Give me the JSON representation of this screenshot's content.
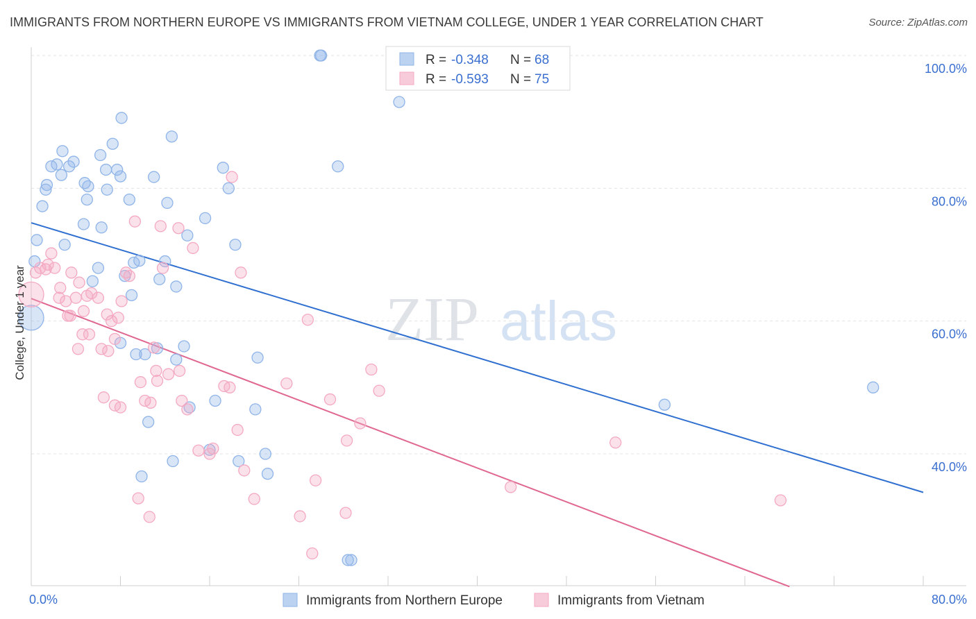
{
  "chart_data": {
    "type": "scatter",
    "title": "IMMIGRANTS FROM NORTHERN EUROPE VS IMMIGRANTS FROM VIETNAM COLLEGE, UNDER 1 YEAR CORRELATION CHART",
    "source": "Source: ZipAtlas.com",
    "ylabel": "College, Under 1 year",
    "xlabel": "",
    "xlim": [
      0,
      80
    ],
    "ylim": [
      20,
      102
    ],
    "x_tick_labels": [
      "0.0%",
      "80.0%"
    ],
    "y_ticks": [
      40,
      60,
      80,
      100
    ],
    "y_tick_labels": [
      "40.0%",
      "60.0%",
      "80.0%",
      "100.0%"
    ],
    "grid": true,
    "watermark": "ZIPatlas",
    "legend_position": "top-center",
    "series": [
      {
        "name": "Immigrants from Northern Europe",
        "color": "#8fb4e8",
        "line_color": "#2f6fd0",
        "r_label": "R =",
        "r_value": "-0.348",
        "n_label": "N =",
        "n_value": "68",
        "trend": [
          [
            0,
            74.8
          ],
          [
            80,
            34.2
          ]
        ],
        "points": [
          [
            0.0,
            60.5
          ],
          [
            0.5,
            72.2
          ],
          [
            0.3,
            69.0
          ],
          [
            1.0,
            77.3
          ],
          [
            1.4,
            80.5
          ],
          [
            1.3,
            79.8
          ],
          [
            1.8,
            83.3
          ],
          [
            2.3,
            83.6
          ],
          [
            2.8,
            85.6
          ],
          [
            3.4,
            83.3
          ],
          [
            3.8,
            84.0
          ],
          [
            2.7,
            82.0
          ],
          [
            5.1,
            80.3
          ],
          [
            4.8,
            80.8
          ],
          [
            3.0,
            71.5
          ],
          [
            4.7,
            74.6
          ],
          [
            5.0,
            78.3
          ],
          [
            6.2,
            85.0
          ],
          [
            6.7,
            82.8
          ],
          [
            6.8,
            79.8
          ],
          [
            7.3,
            86.7
          ],
          [
            7.7,
            82.8
          ],
          [
            8.0,
            81.8
          ],
          [
            8.1,
            90.6
          ],
          [
            8.8,
            78.3
          ],
          [
            11.0,
            81.7
          ],
          [
            12.2,
            77.8
          ],
          [
            12.6,
            87.8
          ],
          [
            6.3,
            74.1
          ],
          [
            5.5,
            66.0
          ],
          [
            8.4,
            66.8
          ],
          [
            9.0,
            63.9
          ],
          [
            9.7,
            69.1
          ],
          [
            11.5,
            66.3
          ],
          [
            13.0,
            65.2
          ],
          [
            14.0,
            72.9
          ],
          [
            15.6,
            75.5
          ],
          [
            17.2,
            83.1
          ],
          [
            17.7,
            80.0
          ],
          [
            18.3,
            71.5
          ],
          [
            8.0,
            56.7
          ],
          [
            9.4,
            55.0
          ],
          [
            10.2,
            55.0
          ],
          [
            11.3,
            55.9
          ],
          [
            13.0,
            54.2
          ],
          [
            13.7,
            56.2
          ],
          [
            20.3,
            54.5
          ],
          [
            10.5,
            44.8
          ],
          [
            12.7,
            38.9
          ],
          [
            14.2,
            47.0
          ],
          [
            16.0,
            40.6
          ],
          [
            16.5,
            48.0
          ],
          [
            18.6,
            38.9
          ],
          [
            20.1,
            46.7
          ],
          [
            21.0,
            40.0
          ],
          [
            21.2,
            37.0
          ],
          [
            9.9,
            36.6
          ],
          [
            25.9,
            100.0
          ],
          [
            26.0,
            100.0
          ],
          [
            27.5,
            83.3
          ],
          [
            33.0,
            93.0
          ],
          [
            28.4,
            24.0
          ],
          [
            28.7,
            24.0
          ],
          [
            56.8,
            47.4
          ],
          [
            75.5,
            50.0
          ],
          [
            9.2,
            68.8
          ],
          [
            6.0,
            68.0
          ],
          [
            12.0,
            69.0
          ]
        ]
      },
      {
        "name": "Immigrants from Vietnam",
        "color": "#f4a9c2",
        "line_color": "#e0678f",
        "r_label": "R =",
        "r_value": "-0.593",
        "n_label": "N =",
        "n_value": "75",
        "trend": [
          [
            0,
            63.4
          ],
          [
            68,
            20.0
          ]
        ],
        "points": [
          [
            0.0,
            64.0
          ],
          [
            0.4,
            67.3
          ],
          [
            0.8,
            68.0
          ],
          [
            1.5,
            68.5
          ],
          [
            1.3,
            67.8
          ],
          [
            1.8,
            70.2
          ],
          [
            2.1,
            68.0
          ],
          [
            2.6,
            65.0
          ],
          [
            2.5,
            63.5
          ],
          [
            3.1,
            63.0
          ],
          [
            3.3,
            60.8
          ],
          [
            3.6,
            67.3
          ],
          [
            4.0,
            63.5
          ],
          [
            4.3,
            65.8
          ],
          [
            4.7,
            61.5
          ],
          [
            4.6,
            58.0
          ],
          [
            4.2,
            55.8
          ],
          [
            5.0,
            63.8
          ],
          [
            5.4,
            64.2
          ],
          [
            5.2,
            58.0
          ],
          [
            6.3,
            55.8
          ],
          [
            6.8,
            61.0
          ],
          [
            6.0,
            63.5
          ],
          [
            6.9,
            55.5
          ],
          [
            7.2,
            60.0
          ],
          [
            7.5,
            57.3
          ],
          [
            7.8,
            60.5
          ],
          [
            8.1,
            63.0
          ],
          [
            8.5,
            67.3
          ],
          [
            8.8,
            66.8
          ],
          [
            9.3,
            75.0
          ],
          [
            9.8,
            50.8
          ],
          [
            10.2,
            48.0
          ],
          [
            10.7,
            47.7
          ],
          [
            11.0,
            56.0
          ],
          [
            11.2,
            52.5
          ],
          [
            11.6,
            74.3
          ],
          [
            11.8,
            68.0
          ],
          [
            12.3,
            52.0
          ],
          [
            13.3,
            52.5
          ],
          [
            13.2,
            74.0
          ],
          [
            13.5,
            48.0
          ],
          [
            14.0,
            46.7
          ],
          [
            14.5,
            71.0
          ],
          [
            15.0,
            40.5
          ],
          [
            16.0,
            40.0
          ],
          [
            16.3,
            40.8
          ],
          [
            17.3,
            50.2
          ],
          [
            17.8,
            50.0
          ],
          [
            18.5,
            43.6
          ],
          [
            18.8,
            67.3
          ],
          [
            19.1,
            37.5
          ],
          [
            20.0,
            33.2
          ],
          [
            18.0,
            81.7
          ],
          [
            22.9,
            50.6
          ],
          [
            24.1,
            30.6
          ],
          [
            24.8,
            60.2
          ],
          [
            25.2,
            25.0
          ],
          [
            25.5,
            36.0
          ],
          [
            26.8,
            48.2
          ],
          [
            28.3,
            42.0
          ],
          [
            28.2,
            31.1
          ],
          [
            29.5,
            44.6
          ],
          [
            30.5,
            52.7
          ],
          [
            31.2,
            49.5
          ],
          [
            43.0,
            35.0
          ],
          [
            52.4,
            41.7
          ],
          [
            67.2,
            33.0
          ],
          [
            9.6,
            33.3
          ],
          [
            10.6,
            30.5
          ],
          [
            11.3,
            51.0
          ],
          [
            6.5,
            48.5
          ],
          [
            7.5,
            47.3
          ],
          [
            8.0,
            47.0
          ],
          [
            3.5,
            60.8
          ]
        ]
      }
    ]
  }
}
